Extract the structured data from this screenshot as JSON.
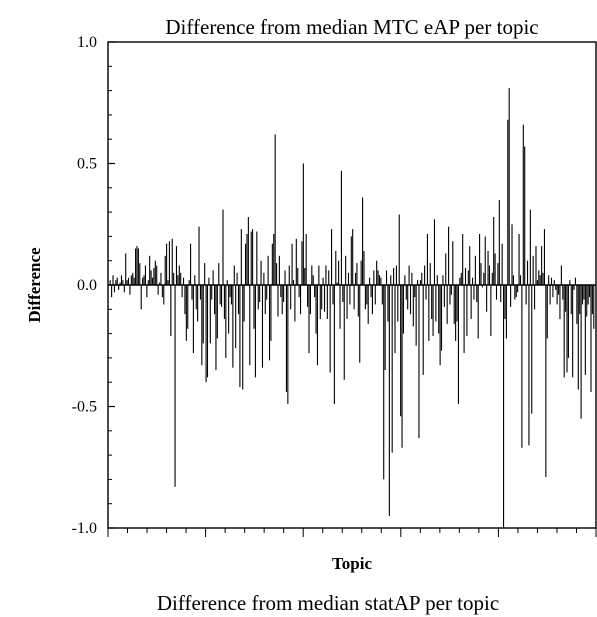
{
  "chart_data": {
    "type": "bar",
    "title": "Difference from median MTC eAP per topic",
    "subtitle": "Difference from median statAP per topic",
    "xlabel": "Topic",
    "ylabel": "Difference",
    "ylim": [
      -1.0,
      1.0
    ],
    "yticks": [
      "1.0",
      "0.5",
      "0.0",
      "-0.5",
      "-1.0"
    ],
    "ytick_values": [
      1.0,
      0.5,
      0.0,
      -0.5,
      -1.0
    ],
    "x_count": 500,
    "x_major_tick_every": 100,
    "x_minor_tick_every": 20,
    "grid": false,
    "series": [
      {
        "values": [
          0.02,
          -0.05,
          0.04,
          -0.03,
          0.02,
          0.03,
          -0.02,
          0.01,
          0.04,
          0.02,
          -0.03,
          0.13,
          0.02,
          0.03,
          -0.04,
          0.04,
          0.05,
          0.03,
          0.15,
          0.16,
          0.15,
          0.09,
          -0.1,
          0.03,
          0.04,
          0.08,
          -0.05,
          0.02,
          0.12,
          0.06,
          0.03,
          0.07,
          0.1,
          0.08,
          -0.04,
          0.01,
          0.05,
          -0.05,
          -0.08,
          0.12,
          0.17,
          0.02,
          0.18,
          -0.21,
          0.19,
          0.05,
          -0.83,
          0.16,
          0.04,
          0.08,
          0.05,
          -0.05,
          0.03,
          -0.12,
          -0.23,
          -0.18,
          0.02,
          0.17,
          -0.06,
          -0.28,
          0.04,
          -0.1,
          -0.15,
          0.24,
          -0.06,
          -0.33,
          -0.24,
          0.09,
          -0.4,
          -0.38,
          0.03,
          -0.24,
          -0.06,
          0.06,
          -0.12,
          -0.35,
          -0.22,
          0.09,
          -0.08,
          -0.09,
          0.31,
          -0.14,
          -0.3,
          0.02,
          -0.2,
          -0.05,
          -0.08,
          -0.34,
          0.08,
          -0.26,
          0.05,
          -0.12,
          -0.42,
          0.23,
          -0.43,
          -0.15,
          0.17,
          0.21,
          0.28,
          -0.33,
          0.22,
          0.23,
          -0.18,
          -0.38,
          0.22,
          -0.1,
          -0.07,
          0.1,
          -0.34,
          0.05,
          -0.12,
          -0.06,
          0.12,
          -0.31,
          -0.23,
          0.17,
          0.21,
          0.62,
          0.09,
          -0.13,
          0.12,
          -0.05,
          -0.12,
          -0.07,
          0.06,
          -0.44,
          -0.49,
          0.08,
          -0.1,
          0.17,
          0.02,
          -0.15,
          0.19,
          0.07,
          -0.05,
          -0.12,
          0.18,
          0.5,
          0.07,
          0.21,
          -0.09,
          -0.28,
          -0.12,
          0.08,
          0.04,
          -0.05,
          -0.2,
          -0.33,
          0.08,
          -0.14,
          -0.1,
          0.03,
          -0.11,
          0.08,
          -0.14,
          0.06,
          -0.36,
          0.23,
          -0.08,
          -0.49,
          0.14,
          0.01,
          0.1,
          -0.18,
          0.47,
          -0.07,
          -0.39,
          0.12,
          -0.14,
          0.05,
          -0.08,
          0.2,
          0.23,
          -0.1,
          0.05,
          0.09,
          -0.13,
          -0.32,
          0.1,
          0.36,
          0.14,
          -0.1,
          -0.08,
          -0.16,
          0.03,
          -0.05,
          -0.12,
          0.06,
          -0.08,
          0.1,
          0.06,
          0.04,
          0.03,
          -0.08,
          -0.8,
          -0.35,
          0.06,
          -0.15,
          -0.95,
          0.04,
          -0.69,
          0.07,
          -0.28,
          0.08,
          -0.15,
          0.29,
          -0.54,
          -0.67,
          -0.2,
          0.04,
          -0.06,
          -0.1,
          0.08,
          -0.12,
          0.05,
          -0.17,
          -0.05,
          -0.25,
          0.02,
          -0.63,
          0.02,
          0.05,
          -0.37,
          0.08,
          -0.06,
          0.21,
          -0.23,
          0.09,
          -0.14,
          -0.21,
          0.27,
          -0.15,
          0.04,
          -0.2,
          -0.33,
          -0.27,
          0.04,
          -0.09,
          0.13,
          -0.16,
          0.24,
          -0.08,
          -0.04,
          0.18,
          -0.16,
          -0.23,
          -0.15,
          -0.49,
          0.03,
          0.05,
          0.21,
          -0.28,
          0.07,
          -0.21,
          0.06,
          0.16,
          -0.14,
          0.03,
          -0.06,
          0.12,
          -0.07,
          -0.22,
          0.21,
          0.09,
          -0.01,
          0.05,
          0.2,
          -0.11,
          0.14,
          0.08,
          -0.21,
          0.05,
          0.28,
          0.13,
          -0.06,
          0.09,
          0.35,
          -0.07,
          0.17,
          -1.0,
          -0.14,
          -0.22,
          0.68,
          0.81,
          -0.09,
          0.25,
          0.04,
          -0.06,
          -0.05,
          -0.03,
          0.21,
          0.04,
          -0.67,
          0.66,
          0.57,
          -0.08,
          0.1,
          -0.66,
          0.31,
          -0.53,
          0.12,
          -0.1,
          0.16,
          0.02,
          0.06,
          0.04,
          0.16,
          0.05,
          0.23,
          -0.79,
          -0.22,
          0.04,
          -0.08,
          0.03,
          -0.05,
          0.02,
          -0.02,
          -0.08,
          -0.04,
          -0.14,
          0.08,
          -0.06,
          -0.38,
          -0.11,
          -0.36,
          -0.3,
          0.02,
          -0.12,
          -0.38,
          -0.02,
          0.03,
          -0.16,
          -0.43,
          -0.12,
          -0.55,
          -0.08,
          -0.06,
          -0.37,
          -0.13,
          -0.08,
          -0.05,
          -0.44,
          -0.12,
          -0.18
        ]
      }
    ]
  }
}
